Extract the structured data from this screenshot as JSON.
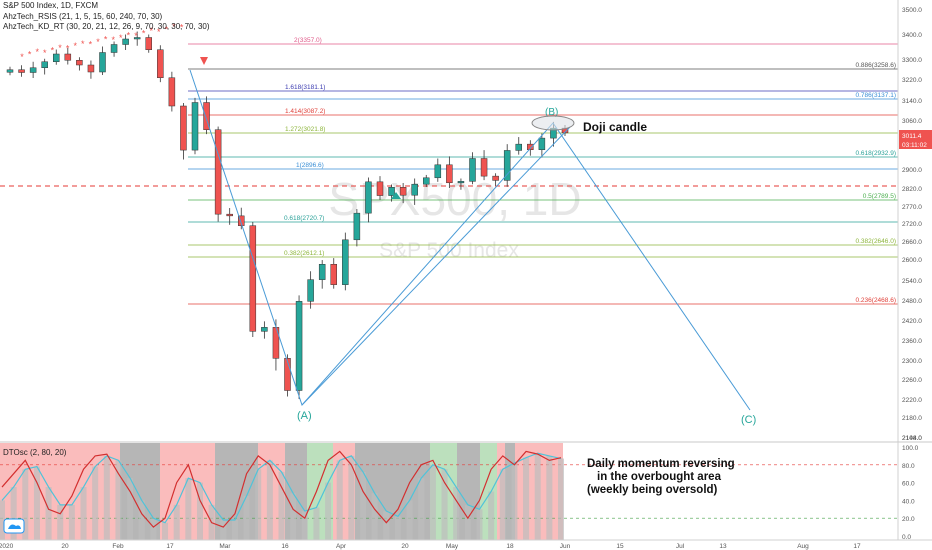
{
  "header": {
    "symbol_line": "S&P 500 Index, 1D, FXCM",
    "indicator1": "AhzTech_RSIS (21, 1, 5, 15, 60, 240, 70, 30)",
    "indicator2": "AhzTech_KD_RT (30, 20, 21, 12, 26, 9, 70, 30, 30, 70, 30)"
  },
  "watermark": {
    "symbol": "SPX500, 1D",
    "name": "S&P 500 Index"
  },
  "price_axis": {
    "ticks": [
      "3500.0",
      "3400.0",
      "3300.0",
      "3220.0",
      "3140.0",
      "3060.0",
      "2980.0",
      "2900.0",
      "2820.0",
      "2770.0",
      "2720.0",
      "2660.0",
      "2600.0",
      "2540.0",
      "2480.0",
      "2420.0",
      "2360.0",
      "2300.0",
      "2260.0",
      "2220.0",
      "2180.0",
      "2144.0",
      "2108.0"
    ],
    "last_price": "3011.4",
    "countdown": "03:11:02"
  },
  "oscillator_axis": {
    "ticks": [
      "100.0",
      "80.0",
      "60.0",
      "40.0",
      "20.0",
      "0.0"
    ]
  },
  "oscillator_label": "DTOsc (2, 80, 20)",
  "time_axis": {
    "labels": [
      "2020",
      "20",
      "Feb",
      "17",
      "Mar",
      "16",
      "Apr",
      "20",
      "May",
      "18",
      "Jun",
      "15",
      "Jul",
      "13",
      "Aug",
      "17"
    ]
  },
  "fib_levels": [
    {
      "label": "2(3357.0)",
      "color": "#e05b8a"
    },
    {
      "label": "0.886(3258.6)",
      "color": "#555555"
    },
    {
      "label": "1.618(3181.1)",
      "color": "#3b3bb0"
    },
    {
      "label": "0.786(3137.1)",
      "color": "#3a8fd6"
    },
    {
      "label": "1.414(3087.2)",
      "color": "#e0413a"
    },
    {
      "label": "1.272(3021.8)",
      "color": "#8db53b"
    },
    {
      "label": "0.618(2932.9)",
      "color": "#2aa198"
    },
    {
      "label": "1(2896.6)",
      "color": "#3a8fd6"
    },
    {
      "label": "0.5(2789.5)",
      "color": "#4caf50"
    },
    {
      "label": "0.618(2720.7)",
      "color": "#2aa198"
    },
    {
      "label": "0.382(2646.0)",
      "color": "#8db53b"
    },
    {
      "label": "0.382(2612.1)",
      "color": "#8db53b"
    },
    {
      "label": "0.236(2468.6)",
      "color": "#e0413a"
    }
  ],
  "annotations": {
    "point_a": "(A)",
    "point_b": "(B)",
    "point_c": "(C)",
    "doji": "Doji candle",
    "momentum_line1": "Daily momentum reversing",
    "momentum_line2": "in the overbought area",
    "momentum_line3": "(weekly being oversold)"
  },
  "colors": {
    "up": "#26a69a",
    "down": "#ef5350",
    "pattern": "#4a9bd6",
    "dashed_red": "#e53935"
  },
  "chart_data": [
    {
      "type": "candlestick",
      "title": "S&P 500 Index, 1D, FXCM",
      "ylim": [
        2108,
        3500
      ],
      "x": [
        "Jan 02",
        "Jan 06",
        "Jan 10",
        "Jan 14",
        "Jan 20",
        "Jan 24",
        "Jan 28",
        "Feb 03",
        "Feb 07",
        "Feb 11",
        "Feb 17",
        "Feb 19",
        "Feb 21",
        "Feb 24",
        "Feb 26",
        "Feb 28",
        "Mar 03",
        "Mar 05",
        "Mar 09",
        "Mar 11",
        "Mar 13",
        "Mar 16",
        "Mar 18",
        "Mar 20",
        "Mar 23",
        "Mar 25",
        "Mar 27",
        "Mar 31",
        "Apr 02",
        "Apr 06",
        "Apr 08",
        "Apr 14",
        "Apr 16",
        "Apr 20",
        "Apr 22",
        "Apr 24",
        "Apr 28",
        "Apr 30",
        "May 04",
        "May 06",
        "May 08",
        "May 12",
        "May 14",
        "May 18",
        "May 20",
        "May 22",
        "May 26",
        "May 28",
        "May 29"
      ],
      "close": [
        3257,
        3246,
        3265,
        3289,
        3320,
        3295,
        3276,
        3248,
        3326,
        3358,
        3380,
        3386,
        3337,
        3225,
        3116,
        2954,
        3130,
        3023,
        2746,
        2741,
        2711,
        2386,
        2398,
        2305,
        2237,
        2476,
        2541,
        2585,
        2526,
        2664,
        2749,
        2846,
        2799,
        2823,
        2800,
        2836,
        2863,
        2912,
        2842,
        2848,
        2930,
        2870,
        2852,
        2953,
        2971,
        2955,
        2991,
        3029,
        3011
      ],
      "pattern_points": {
        "X": [
          "Feb 19",
          3393
        ],
        "A": [
          "Mar 23",
          2192
        ],
        "B": [
          "May 28",
          3049
        ],
        "C": [
          "Jul 30",
          2150
        ]
      }
    },
    {
      "type": "line",
      "title": "DTOsc (2, 80, 20)",
      "ylim": [
        0,
        100
      ],
      "overbought": 80,
      "oversold": 20,
      "series": [
        {
          "values": [
            55,
            70,
            85,
            60,
            30,
            25,
            45,
            75,
            90,
            92,
            70,
            50,
            25,
            10,
            20,
            60,
            80,
            40,
            15,
            10,
            25,
            70,
            90,
            80,
            55,
            30,
            20,
            50,
            85,
            95,
            80,
            50,
            30,
            15,
            30,
            60,
            80,
            85,
            60,
            40,
            20,
            40,
            75,
            90,
            80,
            95,
            92,
            85,
            88
          ]
        },
        {
          "values": [
            40,
            55,
            75,
            78,
            55,
            35,
            35,
            55,
            78,
            90,
            85,
            65,
            40,
            20,
            15,
            35,
            65,
            60,
            35,
            18,
            18,
            45,
            75,
            85,
            72,
            48,
            28,
            32,
            60,
            85,
            90,
            72,
            48,
            28,
            22,
            40,
            65,
            80,
            75,
            55,
            35,
            30,
            50,
            75,
            82,
            88,
            93,
            90,
            87
          ]
        }
      ]
    }
  ]
}
